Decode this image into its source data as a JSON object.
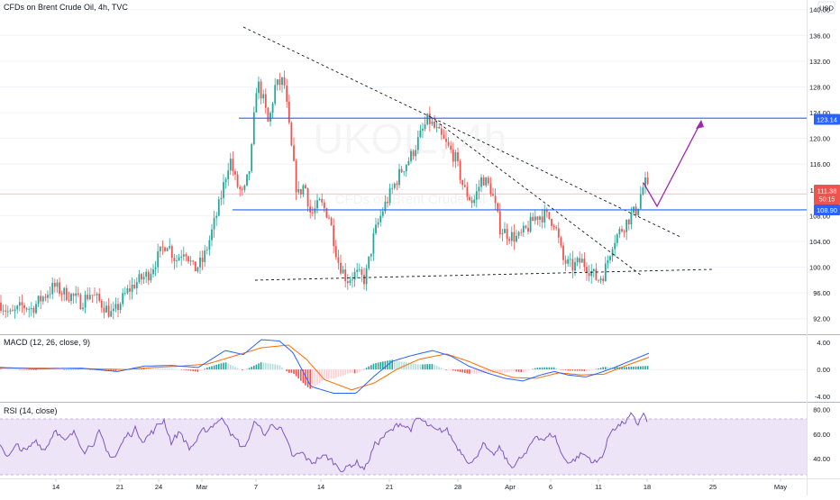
{
  "header": {
    "title": "CFDs on Brent Crude Oil, 4h, TVC",
    "currency": "USD",
    "watermark_symbol": "UKOIL, 4h",
    "watermark_desc": "CFDs on Brent Crude Oil"
  },
  "panes": {
    "macd_label": "MACD (12, 26, close, 9)",
    "rsi_label": "RSI (14, close)"
  },
  "price_badges": {
    "last_price": "111.38",
    "countdown": "50:15",
    "upper_level": "123.14",
    "lower_level": "108.90"
  },
  "colors": {
    "up": "#26a69a",
    "down": "#ef5350",
    "level_line": "#2962ff",
    "projection": "#9c27b0",
    "macd_line": "#2962ff",
    "signal_line": "#ff6d00",
    "rsi_line": "#7e57c2",
    "rsi_band": "#ede4f7"
  },
  "chart_data": [
    {
      "type": "candlestick",
      "name": "CFDs on Brent Crude Oil, 4h, TVC",
      "x_ticks": [
        "14",
        "21",
        "24",
        "Mar",
        "7",
        "14",
        "21",
        "28",
        "Apr",
        "6",
        "11",
        "18",
        "25",
        "May"
      ],
      "y_ticks": [
        "140.00",
        "136.00",
        "132.00",
        "128.00",
        "124.00",
        "120.00",
        "116.00",
        "112.00",
        "108.00",
        "104.00",
        "100.00",
        "96.00",
        "92.00"
      ],
      "ylim": [
        90,
        141.5
      ],
      "anchors": [
        [
          0,
          94.5
        ],
        [
          12,
          92.5
        ],
        [
          25,
          94
        ],
        [
          35,
          93.5
        ],
        [
          45,
          95
        ],
        [
          60,
          97
        ],
        [
          70,
          96
        ],
        [
          80,
          95.5
        ],
        [
          90,
          94.5
        ],
        [
          100,
          96
        ],
        [
          115,
          94
        ],
        [
          125,
          92.5
        ],
        [
          140,
          96
        ],
        [
          150,
          97.5
        ],
        [
          165,
          99
        ],
        [
          175,
          101.5
        ],
        [
          185,
          104
        ],
        [
          195,
          101
        ],
        [
          205,
          103
        ],
        [
          215,
          99.5
        ],
        [
          225,
          101
        ],
        [
          232,
          104
        ],
        [
          242,
          109
        ],
        [
          255,
          117
        ],
        [
          262,
          113
        ],
        [
          270,
          111
        ],
        [
          278,
          116
        ],
        [
          285,
          129
        ],
        [
          292,
          126
        ],
        [
          298,
          122
        ],
        [
          305,
          128
        ],
        [
          315,
          129
        ],
        [
          322,
          120
        ],
        [
          330,
          111
        ],
        [
          338,
          113
        ],
        [
          345,
          108
        ],
        [
          355,
          110
        ],
        [
          365,
          108
        ],
        [
          375,
          101
        ],
        [
          385,
          98
        ],
        [
          395,
          99
        ],
        [
          405,
          98
        ],
        [
          415,
          105
        ],
        [
          425,
          109
        ],
        [
          435,
          112
        ],
        [
          445,
          115
        ],
        [
          455,
          117
        ],
        [
          465,
          120
        ],
        [
          475,
          123
        ],
        [
          485,
          121
        ],
        [
          495,
          119
        ],
        [
          505,
          117
        ],
        [
          515,
          112
        ],
        [
          525,
          110
        ],
        [
          535,
          114
        ],
        [
          545,
          112
        ],
        [
          555,
          106
        ],
        [
          565,
          105
        ],
        [
          575,
          104.5
        ],
        [
          585,
          106
        ],
        [
          595,
          108
        ],
        [
          605,
          108
        ],
        [
          615,
          107
        ],
        [
          625,
          101
        ],
        [
          635,
          100
        ],
        [
          645,
          101
        ],
        [
          655,
          99.5
        ],
        [
          663,
          98
        ],
        [
          670,
          99
        ],
        [
          680,
          104
        ],
        [
          690,
          106
        ],
        [
          700,
          108
        ],
        [
          707,
          109
        ],
        [
          712,
          112
        ],
        [
          716,
          113
        ],
        [
          720,
          111.4
        ]
      ],
      "levels": [
        {
          "name": "resistance",
          "value": 123.14
        },
        {
          "name": "support",
          "value": 108.9
        },
        {
          "name": "last-price",
          "value": 111.38
        }
      ]
    },
    {
      "type": "macd",
      "name": "MACD (12, 26, close, 9)",
      "y_ticks": [
        "4.00",
        "0.00",
        "-4.00"
      ],
      "ylim": [
        -4.5,
        4.8
      ],
      "macd_anchors": [
        [
          0,
          0.3
        ],
        [
          40,
          0.1
        ],
        [
          90,
          0.2
        ],
        [
          130,
          -0.3
        ],
        [
          160,
          0.5
        ],
        [
          190,
          0.6
        ],
        [
          220,
          0.3
        ],
        [
          250,
          2.8
        ],
        [
          270,
          2.2
        ],
        [
          290,
          4.4
        ],
        [
          310,
          4.2
        ],
        [
          325,
          2.5
        ],
        [
          345,
          -2.5
        ],
        [
          370,
          -3.5
        ],
        [
          395,
          -3.5
        ],
        [
          415,
          -1.0
        ],
        [
          435,
          1.2
        ],
        [
          455,
          2.0
        ],
        [
          480,
          2.8
        ],
        [
          500,
          2.0
        ],
        [
          520,
          0.5
        ],
        [
          540,
          -0.5
        ],
        [
          560,
          -1.3
        ],
        [
          580,
          -1.7
        ],
        [
          600,
          -0.8
        ],
        [
          615,
          -0.3
        ],
        [
          630,
          -0.8
        ],
        [
          650,
          -1.1
        ],
        [
          665,
          -0.5
        ],
        [
          680,
          0.2
        ],
        [
          700,
          1.3
        ],
        [
          720,
          2.4
        ]
      ],
      "signal_anchors": [
        [
          0,
          0.2
        ],
        [
          50,
          0.2
        ],
        [
          100,
          0.1
        ],
        [
          140,
          0.0
        ],
        [
          170,
          0.3
        ],
        [
          200,
          0.5
        ],
        [
          230,
          0.8
        ],
        [
          260,
          2.0
        ],
        [
          290,
          3.2
        ],
        [
          320,
          3.6
        ],
        [
          340,
          1.5
        ],
        [
          360,
          -1.5
        ],
        [
          390,
          -3.0
        ],
        [
          415,
          -2.0
        ],
        [
          440,
          0.0
        ],
        [
          465,
          1.5
        ],
        [
          495,
          2.3
        ],
        [
          520,
          1.2
        ],
        [
          545,
          -0.2
        ],
        [
          570,
          -1.2
        ],
        [
          595,
          -1.3
        ],
        [
          620,
          -0.5
        ],
        [
          645,
          -0.8
        ],
        [
          670,
          -0.7
        ],
        [
          695,
          0.6
        ],
        [
          720,
          1.8
        ]
      ]
    },
    {
      "type": "line",
      "name": "RSI (14, close)",
      "y_ticks": [
        "80.00",
        "60.00",
        "40.00"
      ],
      "ylim": [
        24,
        84
      ],
      "band": [
        30,
        70
      ],
      "anchors": [
        [
          0,
          52
        ],
        [
          10,
          42
        ],
        [
          20,
          50
        ],
        [
          30,
          45
        ],
        [
          40,
          55
        ],
        [
          50,
          48
        ],
        [
          62,
          66
        ],
        [
          72,
          52
        ],
        [
          82,
          60
        ],
        [
          95,
          48
        ],
        [
          110,
          60
        ],
        [
          118,
          44
        ],
        [
          128,
          42
        ],
        [
          140,
          58
        ],
        [
          150,
          64
        ],
        [
          160,
          56
        ],
        [
          170,
          62
        ],
        [
          182,
          72
        ],
        [
          190,
          54
        ],
        [
          200,
          62
        ],
        [
          210,
          48
        ],
        [
          222,
          58
        ],
        [
          232,
          65
        ],
        [
          242,
          72
        ],
        [
          252,
          70
        ],
        [
          260,
          56
        ],
        [
          270,
          48
        ],
        [
          278,
          60
        ],
        [
          285,
          72
        ],
        [
          292,
          58
        ],
        [
          300,
          66
        ],
        [
          310,
          68
        ],
        [
          318,
          52
        ],
        [
          325,
          40
        ],
        [
          335,
          44
        ],
        [
          345,
          36
        ],
        [
          355,
          42
        ],
        [
          365,
          40
        ],
        [
          375,
          34
        ],
        [
          385,
          32
        ],
        [
          395,
          38
        ],
        [
          405,
          32
        ],
        [
          415,
          50
        ],
        [
          425,
          58
        ],
        [
          435,
          62
        ],
        [
          445,
          70
        ],
        [
          455,
          64
        ],
        [
          465,
          72
        ],
        [
          475,
          66
        ],
        [
          485,
          60
        ],
        [
          495,
          64
        ],
        [
          505,
          52
        ],
        [
          515,
          44
        ],
        [
          525,
          36
        ],
        [
          535,
          54
        ],
        [
          545,
          40
        ],
        [
          555,
          48
        ],
        [
          565,
          34
        ],
        [
          575,
          38
        ],
        [
          585,
          44
        ],
        [
          595,
          60
        ],
        [
          605,
          56
        ],
        [
          615,
          60
        ],
        [
          625,
          40
        ],
        [
          635,
          38
        ],
        [
          645,
          44
        ],
        [
          655,
          40
        ],
        [
          663,
          36
        ],
        [
          670,
          46
        ],
        [
          680,
          66
        ],
        [
          690,
          68
        ],
        [
          700,
          74
        ],
        [
          707,
          66
        ],
        [
          713,
          78
        ],
        [
          718,
          70
        ]
      ]
    }
  ]
}
